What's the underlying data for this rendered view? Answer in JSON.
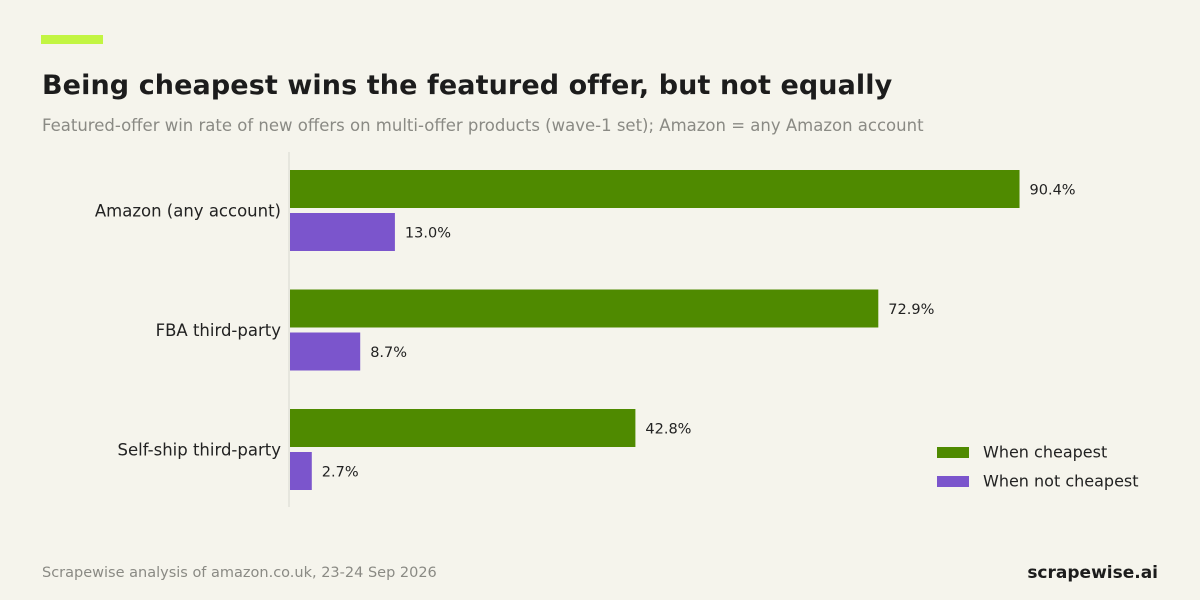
{
  "header": {
    "title": "Being cheapest wins the featured offer, but not equally",
    "subtitle": "Featured-offer win rate of new offers on multi-offer products (wave-1 set); Amazon = any Amazon account"
  },
  "footer": {
    "source": "Scrapewise analysis of amazon.co.uk, 23-24 Sep 2026",
    "brand": "scrapewise.ai"
  },
  "colors": {
    "accent": "#c2f542",
    "cheapest": "#4f8a00",
    "not_cheapest": "#7b55cc"
  },
  "chart_data": {
    "type": "bar",
    "orientation": "horizontal",
    "categories": [
      "Amazon (any account)",
      "FBA third-party",
      "Self-ship third-party"
    ],
    "series": [
      {
        "name": "When cheapest",
        "values": [
          90.4,
          72.9,
          42.8
        ],
        "labels": [
          "90.4%",
          "72.9%",
          "42.8%"
        ]
      },
      {
        "name": "When not cheapest",
        "values": [
          13.0,
          8.7,
          2.7
        ],
        "labels": [
          "13.0%",
          "8.7%",
          "2.7%"
        ]
      }
    ],
    "unit": "%",
    "xlim": [
      0,
      100
    ],
    "grid": false,
    "legend_position": "bottom-right"
  }
}
